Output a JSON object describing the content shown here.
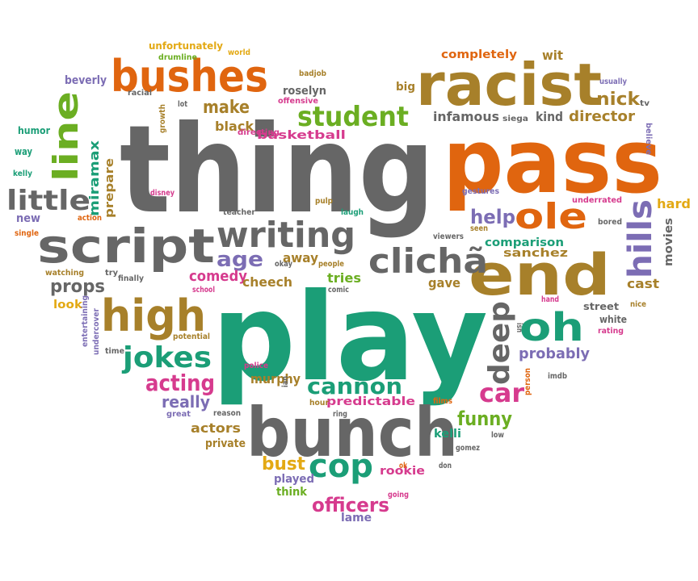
{
  "palette": {
    "gray": "#666666",
    "orange": "#E0650F",
    "green": "#1B9E77",
    "olive": "#A7802A",
    "purple": "#7C6DB4",
    "pink": "#D63B8E",
    "lime": "#6BAE22",
    "gold": "#E3A914"
  },
  "words": [
    {
      "text": "thing",
      "color": "gray"
    },
    {
      "text": "pass",
      "color": "orange"
    },
    {
      "text": "play",
      "color": "green"
    },
    {
      "text": "bunch",
      "color": "gray"
    },
    {
      "text": "racist",
      "color": "olive"
    },
    {
      "text": "bushes",
      "color": "orange"
    },
    {
      "text": "script",
      "color": "gray"
    },
    {
      "text": "writing",
      "color": "gray"
    },
    {
      "text": "end",
      "color": "olive"
    },
    {
      "text": "high",
      "color": "olive"
    },
    {
      "text": "clichã",
      "color": "gray"
    },
    {
      "text": "line",
      "color": "lime"
    },
    {
      "text": "student",
      "color": "lime"
    },
    {
      "text": "little",
      "color": "gray"
    },
    {
      "text": "ole",
      "color": "orange"
    },
    {
      "text": "hills",
      "color": "purple"
    },
    {
      "text": "oh",
      "color": "green"
    },
    {
      "text": "cop",
      "color": "green"
    },
    {
      "text": "jokes",
      "color": "green"
    },
    {
      "text": "cannon",
      "color": "green"
    },
    {
      "text": "deep",
      "color": "gray"
    },
    {
      "text": "car",
      "color": "pink"
    },
    {
      "text": "acting",
      "color": "pink"
    },
    {
      "text": "funny",
      "color": "lime"
    },
    {
      "text": "officers",
      "color": "pink"
    },
    {
      "text": "bust",
      "color": "gold"
    },
    {
      "text": "age",
      "color": "purple"
    },
    {
      "text": "props",
      "color": "gray"
    },
    {
      "text": "help",
      "color": "purple"
    },
    {
      "text": "make",
      "color": "olive"
    },
    {
      "text": "completely",
      "color": "orange"
    },
    {
      "text": "director",
      "color": "olive"
    },
    {
      "text": "nick",
      "color": "olive"
    },
    {
      "text": "kind",
      "color": "gray"
    },
    {
      "text": "infamous",
      "color": "gray"
    },
    {
      "text": "probably",
      "color": "purple"
    },
    {
      "text": "really",
      "color": "purple"
    },
    {
      "text": "actors",
      "color": "olive"
    },
    {
      "text": "comedy",
      "color": "pink"
    },
    {
      "text": "black",
      "color": "olive"
    },
    {
      "text": "cheech",
      "color": "olive"
    },
    {
      "text": "murphy",
      "color": "olive"
    },
    {
      "text": "tries",
      "color": "lime"
    },
    {
      "text": "away",
      "color": "olive"
    },
    {
      "text": "gave",
      "color": "olive"
    },
    {
      "text": "comparison",
      "color": "green"
    },
    {
      "text": "sanchez",
      "color": "olive"
    },
    {
      "text": "cast",
      "color": "olive"
    },
    {
      "text": "movies",
      "color": "gray"
    },
    {
      "text": "hard",
      "color": "gold"
    },
    {
      "text": "miramax",
      "color": "green"
    },
    {
      "text": "prepare",
      "color": "olive"
    },
    {
      "text": "basketball",
      "color": "pink"
    },
    {
      "text": "predictable",
      "color": "pink"
    },
    {
      "text": "rookie",
      "color": "pink"
    },
    {
      "text": "private",
      "color": "olive"
    },
    {
      "text": "kelli",
      "color": "green"
    },
    {
      "text": "played",
      "color": "purple"
    },
    {
      "text": "think",
      "color": "lime"
    },
    {
      "text": "lame",
      "color": "purple"
    },
    {
      "text": "beverly",
      "color": "purple"
    },
    {
      "text": "unfortunately",
      "color": "gold"
    },
    {
      "text": "wit",
      "color": "olive"
    },
    {
      "text": "roselyn",
      "color": "gray"
    },
    {
      "text": "big",
      "color": "olive"
    },
    {
      "text": "look",
      "color": "gold"
    },
    {
      "text": "street",
      "color": "gray"
    },
    {
      "text": "white",
      "color": "gray"
    },
    {
      "text": "siega",
      "color": "gray"
    },
    {
      "text": "new",
      "color": "purple"
    },
    {
      "text": "humor",
      "color": "green"
    },
    {
      "text": "way",
      "color": "green"
    },
    {
      "text": "kelly",
      "color": "green"
    },
    {
      "text": "single",
      "color": "orange"
    },
    {
      "text": "action",
      "color": "orange"
    },
    {
      "text": "watching",
      "color": "olive"
    },
    {
      "text": "try",
      "color": "gray"
    },
    {
      "text": "finally",
      "color": "gray"
    },
    {
      "text": "school",
      "color": "pink"
    },
    {
      "text": "potential",
      "color": "olive"
    },
    {
      "text": "time",
      "color": "gray"
    },
    {
      "text": "entertaining",
      "color": "purple"
    },
    {
      "text": "undercover",
      "color": "purple"
    },
    {
      "text": "teacher",
      "color": "gray"
    },
    {
      "text": "disney",
      "color": "pink"
    },
    {
      "text": "lot",
      "color": "gray"
    },
    {
      "text": "growth",
      "color": "olive"
    },
    {
      "text": "racial",
      "color": "gray"
    },
    {
      "text": "badjob",
      "color": "olive"
    },
    {
      "text": "offensive",
      "color": "pink"
    },
    {
      "text": "directing",
      "color": "pink"
    },
    {
      "text": "drumline",
      "color": "lime"
    },
    {
      "text": "world",
      "color": "gold"
    },
    {
      "text": "usually",
      "color": "purple"
    },
    {
      "text": "tv",
      "color": "gray"
    },
    {
      "text": "believe",
      "color": "purple"
    },
    {
      "text": "gestures",
      "color": "purple"
    },
    {
      "text": "underrated",
      "color": "pink"
    },
    {
      "text": "bored",
      "color": "gray"
    },
    {
      "text": "pulp",
      "color": "olive"
    },
    {
      "text": "laugh",
      "color": "green"
    },
    {
      "text": "viewers",
      "color": "gray"
    },
    {
      "text": "seen",
      "color": "olive"
    },
    {
      "text": "people",
      "color": "olive"
    },
    {
      "text": "okay",
      "color": "gray"
    },
    {
      "text": "comic",
      "color": "gray"
    },
    {
      "text": "nice",
      "color": "olive"
    },
    {
      "text": "hand",
      "color": "pink"
    },
    {
      "text": "rating",
      "color": "pink"
    },
    {
      "text": "isn",
      "color": "gray"
    },
    {
      "text": "police",
      "color": "pink"
    },
    {
      "text": "ian",
      "color": "gray"
    },
    {
      "text": "hour",
      "color": "olive"
    },
    {
      "text": "ring",
      "color": "gray"
    },
    {
      "text": "reason",
      "color": "gray"
    },
    {
      "text": "great",
      "color": "purple"
    },
    {
      "text": "films",
      "color": "orange"
    },
    {
      "text": "person",
      "color": "orange"
    },
    {
      "text": "imdb",
      "color": "gray"
    },
    {
      "text": "low",
      "color": "gray"
    },
    {
      "text": "gomez",
      "color": "gray"
    },
    {
      "text": "ok",
      "color": "orange"
    },
    {
      "text": "don",
      "color": "gray"
    },
    {
      "text": "going",
      "color": "pink"
    }
  ]
}
